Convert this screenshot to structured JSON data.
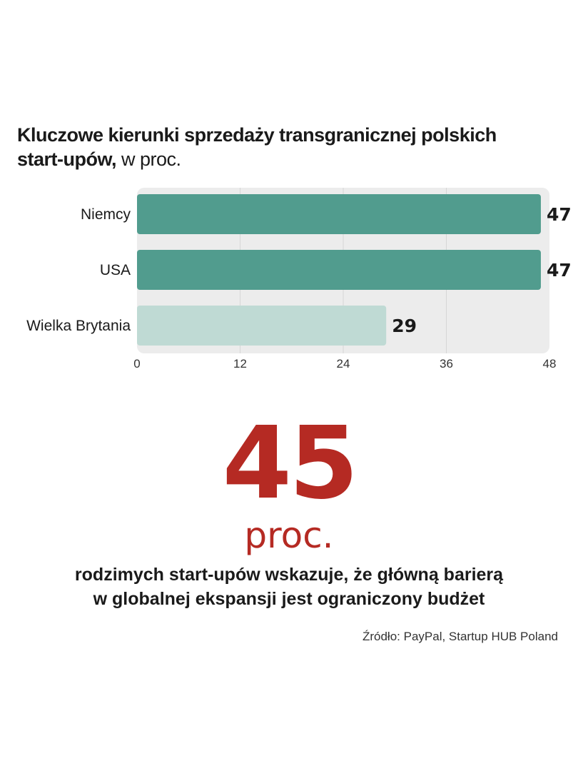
{
  "title": {
    "bold": "Kluczowe kierunki sprzedaży transgranicznej polskich start-upów,",
    "unit": " w proc."
  },
  "chart_data": {
    "type": "bar",
    "orientation": "horizontal",
    "categories": [
      "Niemcy",
      "USA",
      "Wielka Brytania"
    ],
    "values": [
      47,
      47,
      29
    ],
    "value_labels": [
      "47",
      "47",
      "29"
    ],
    "xlim": [
      0,
      48
    ],
    "xticks": [
      0,
      12,
      24,
      36,
      48
    ],
    "xtick_labels": [
      "0",
      "12",
      "24",
      "36",
      "48"
    ],
    "grid": true,
    "colors": {
      "bar_primary": "#519c8e",
      "bar_secondary": "#bfdad4",
      "plot_background": "#ececec",
      "grid": "#d6d6d6"
    }
  },
  "highlight": {
    "number": "45",
    "unit": "proc.",
    "color": "#b52a23"
  },
  "caption": {
    "line1": "rodzimych start-upów wskazuje, że główną barierą",
    "line2": "w globalnej ekspansji jest ograniczony budżet"
  },
  "source": "Źródło: PayPal, Startup HUB Poland"
}
